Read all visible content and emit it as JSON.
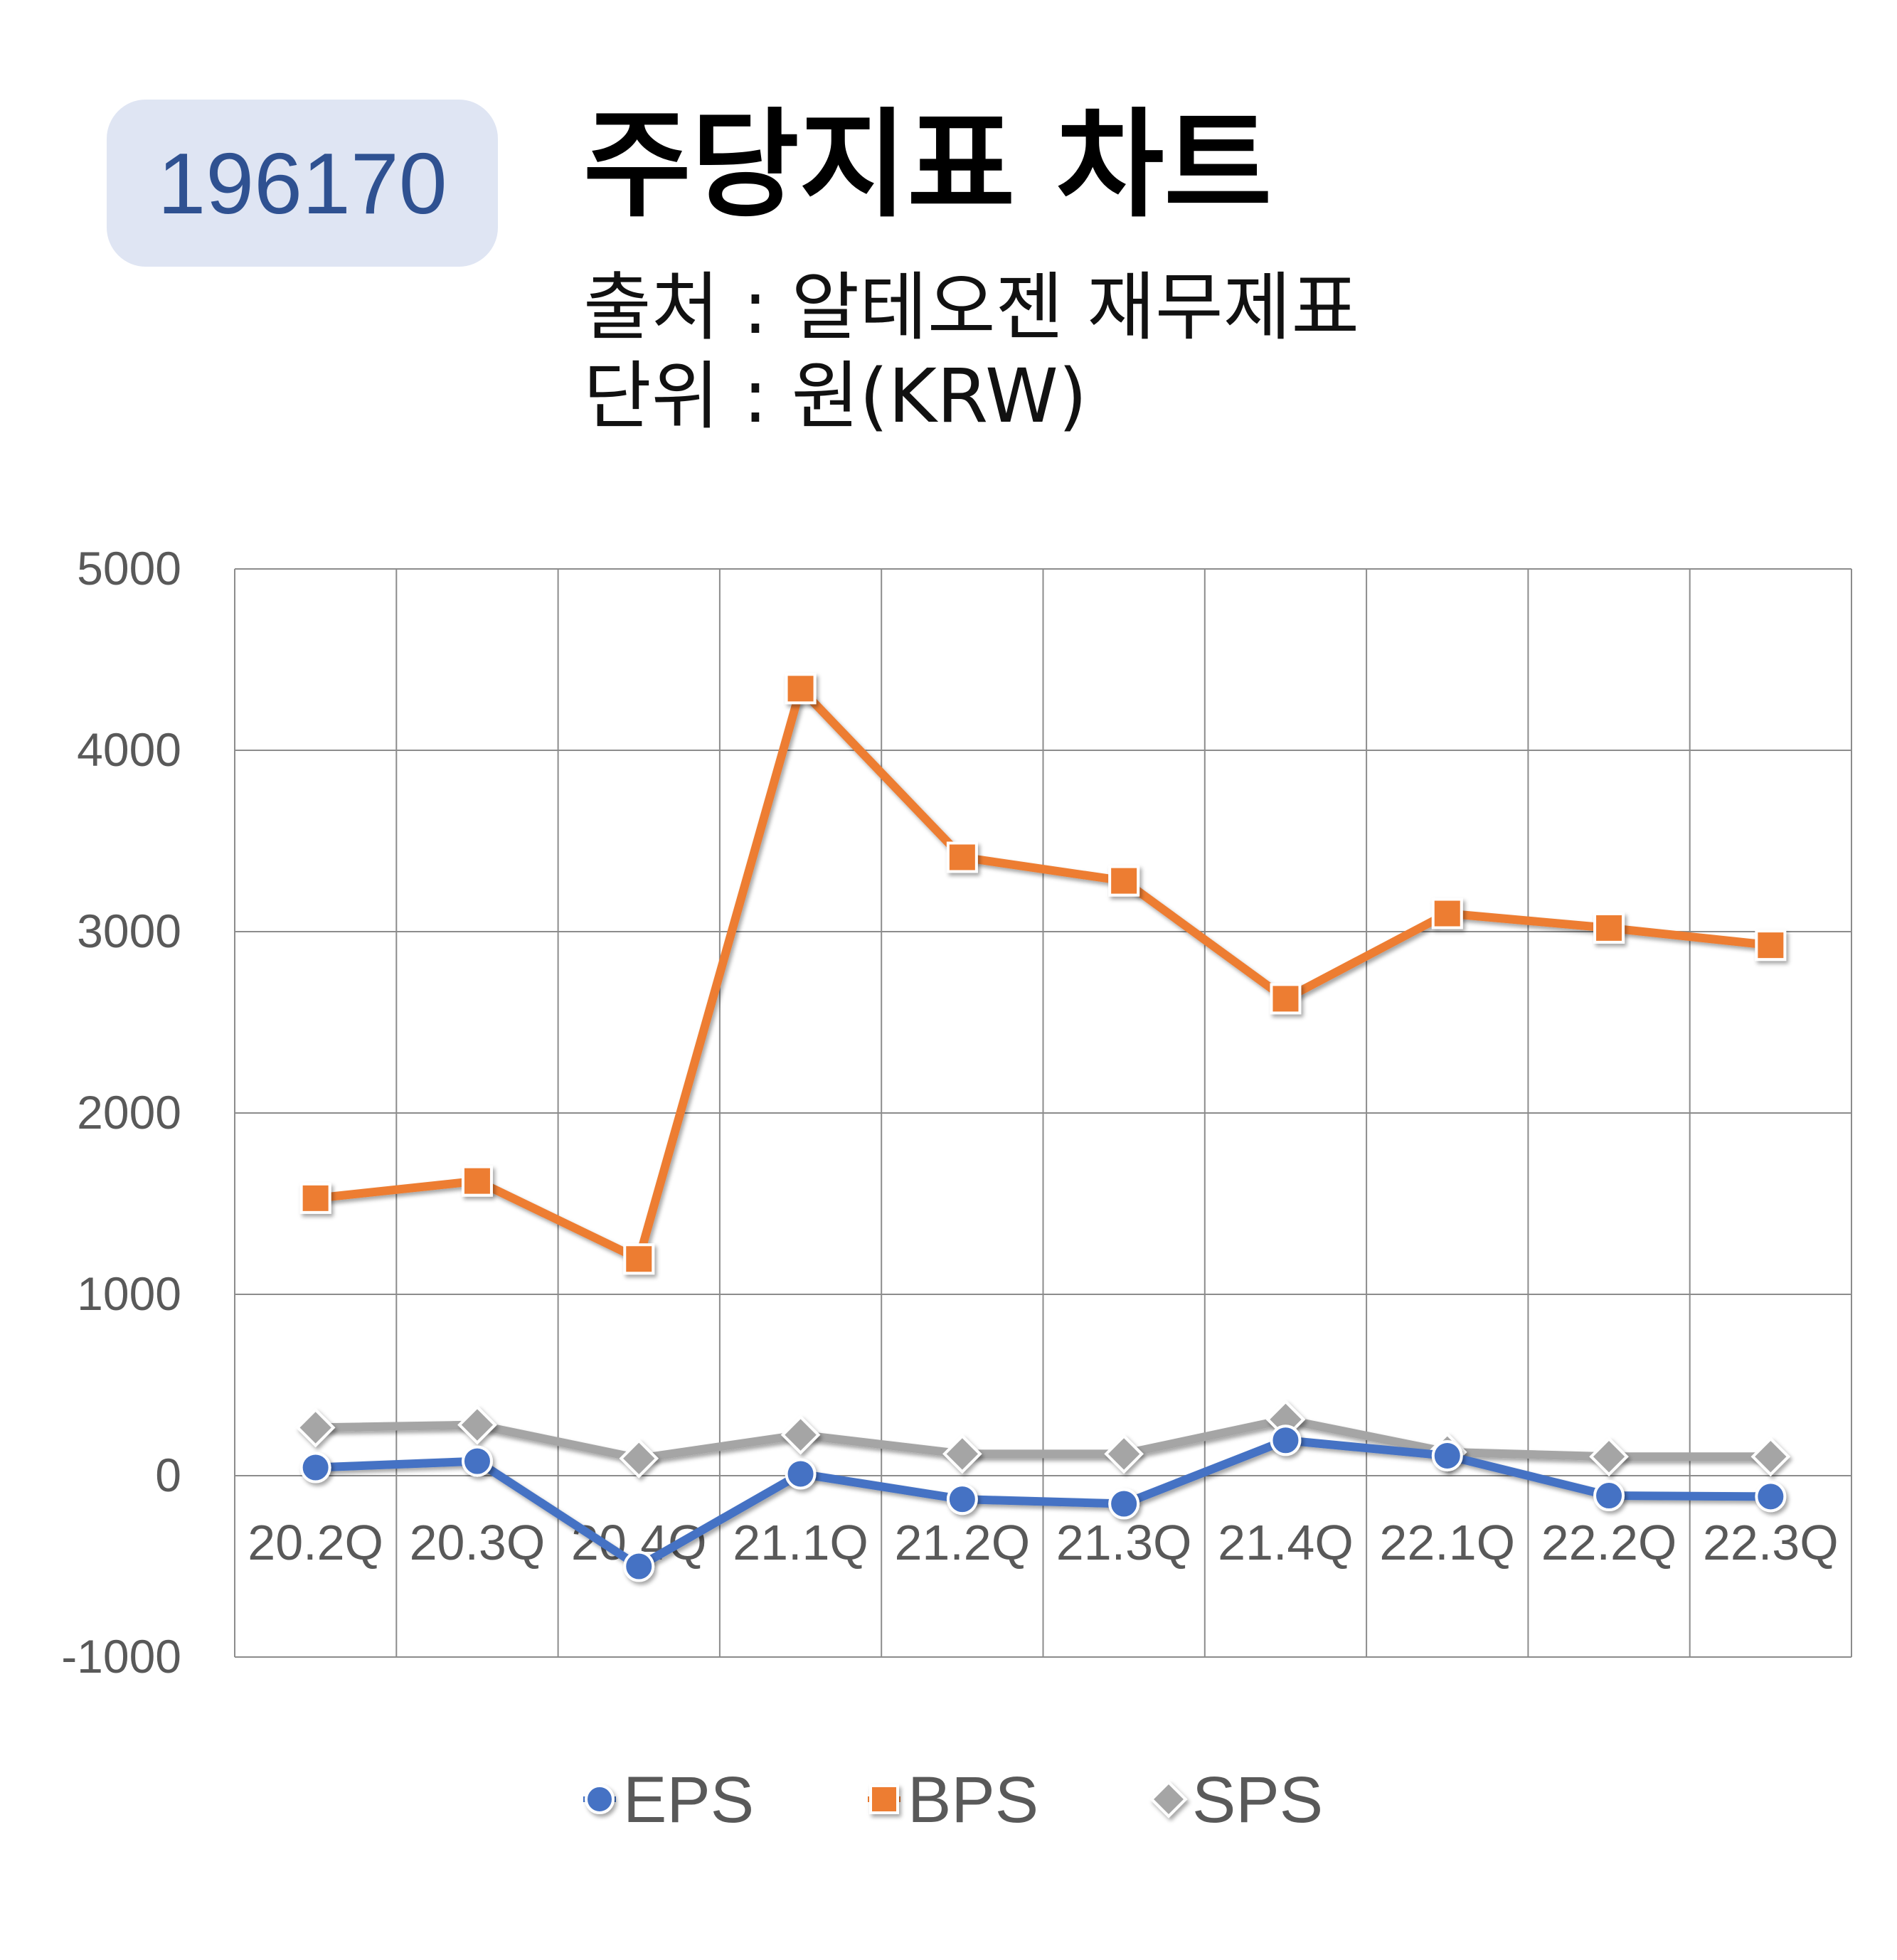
{
  "header": {
    "code": "196170",
    "title": "주당지표 차트",
    "source": "출처 : 알테오젠 재무제표",
    "unit": "단위 : 원(KRW)"
  },
  "chart_data": {
    "type": "line",
    "categories": [
      "20.2Q",
      "20.3Q",
      "20.4Q",
      "21.1Q",
      "21.2Q",
      "21.3Q",
      "21.4Q",
      "22.1Q",
      "22.2Q",
      "22.3Q"
    ],
    "series": [
      {
        "name": "EPS",
        "values": [
          45,
          80,
          -500,
          10,
          -130,
          -155,
          195,
          110,
          -110,
          -115
        ],
        "color": "#4472c4",
        "marker": "circle"
      },
      {
        "name": "BPS",
        "values": [
          1530,
          1625,
          1195,
          4340,
          3410,
          3280,
          2630,
          3100,
          3020,
          2925
        ],
        "color": "#ed7d31",
        "marker": "square"
      },
      {
        "name": "SPS",
        "values": [
          265,
          280,
          95,
          225,
          120,
          120,
          310,
          130,
          105,
          105
        ],
        "color": "#a5a5a5",
        "marker": "diamond"
      }
    ],
    "yticks": [
      "5000",
      "4000",
      "3000",
      "2000",
      "1000",
      "0",
      "-1000"
    ],
    "ylim": [
      -1000,
      5000
    ],
    "grid": true,
    "legend": "bottom"
  }
}
